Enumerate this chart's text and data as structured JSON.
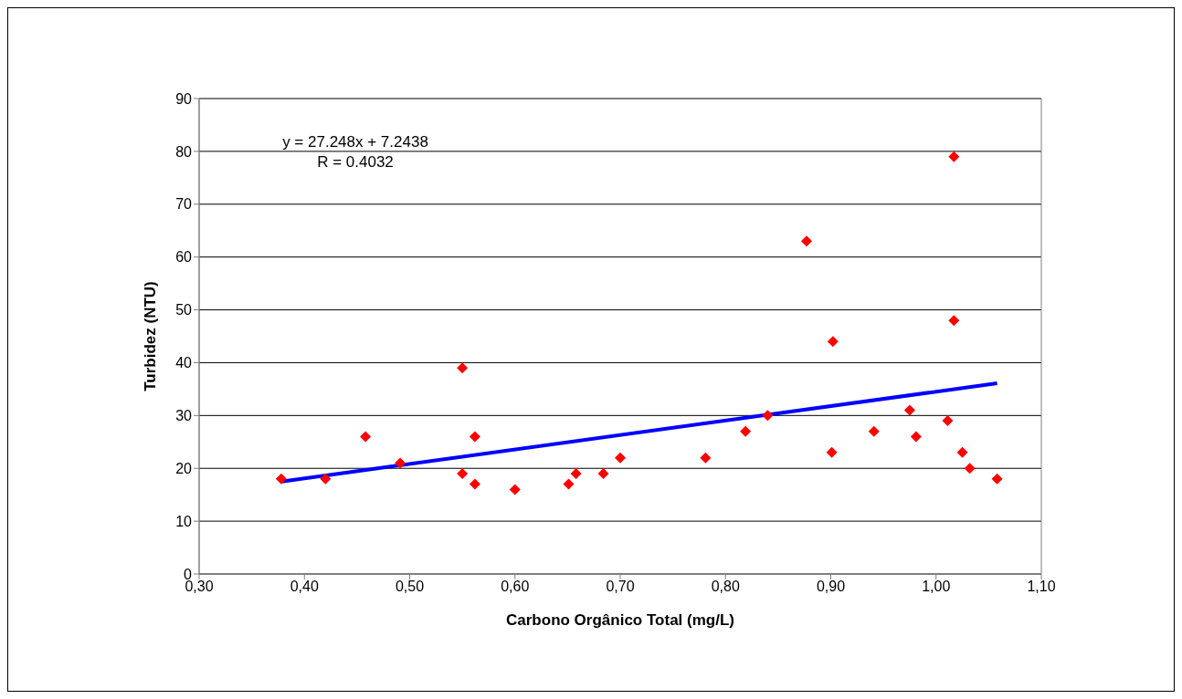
{
  "chart_data": {
    "type": "scatter",
    "xlabel": "Carbono Orgânico Total (mg/L)",
    "ylabel": "Turbidez (NTU)",
    "annotations": [
      "y = 27.248x + 7.2438",
      "R = 0.4032"
    ],
    "xlim": [
      0.3,
      1.1
    ],
    "xticks": [
      {
        "value": 0.3,
        "label": "0,30"
      },
      {
        "value": 0.4,
        "label": "0,40"
      },
      {
        "value": 0.5,
        "label": "0,50"
      },
      {
        "value": 0.6,
        "label": "0,60"
      },
      {
        "value": 0.7,
        "label": "0,70"
      },
      {
        "value": 0.8,
        "label": "0,80"
      },
      {
        "value": 0.9,
        "label": "0,90"
      },
      {
        "value": 1.0,
        "label": "1,00"
      },
      {
        "value": 1.1,
        "label": "1,10"
      }
    ],
    "ylim": [
      0,
      90
    ],
    "yticks": [
      0,
      10,
      20,
      30,
      40,
      50,
      60,
      70,
      80,
      90
    ],
    "grid": "y",
    "series": [
      {
        "type": "scatter",
        "marker": "diamond",
        "color": "#ff0000",
        "x": [
          0.378,
          0.42,
          0.458,
          0.491,
          0.55,
          0.55,
          0.562,
          0.562,
          0.6,
          0.651,
          0.658,
          0.684,
          0.7,
          0.781,
          0.819,
          0.84,
          0.877,
          0.902,
          0.901,
          0.941,
          0.975,
          0.981,
          1.017,
          1.017,
          1.011,
          1.025,
          1.032,
          1.058
        ],
        "values": [
          18,
          18,
          26,
          21,
          39,
          19,
          26,
          17,
          16,
          17,
          19,
          19,
          22,
          22,
          27,
          30,
          63,
          44,
          23,
          27,
          31,
          26,
          79,
          48,
          29,
          23,
          20,
          18
        ]
      },
      {
        "type": "line",
        "marker": "none",
        "color": "#0000ff",
        "x": [
          0.378,
          1.058
        ],
        "values": [
          17.5,
          36.1
        ]
      }
    ]
  }
}
